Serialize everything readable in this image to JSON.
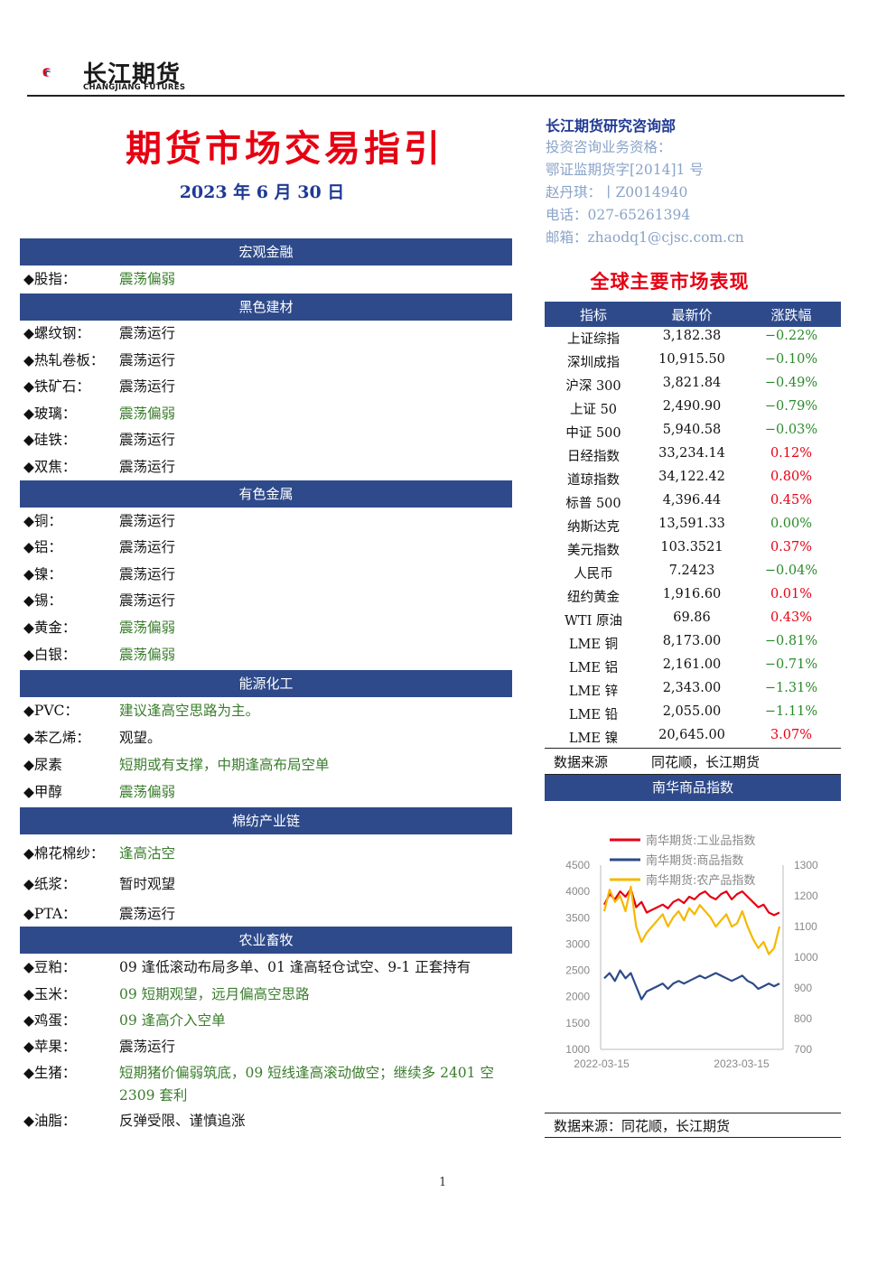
{
  "header": {
    "logo_cn": "长江期货",
    "logo_en": "CHANGJIANG FUTURES",
    "title": "期货市场交易指引",
    "date": "2023 年 6 月 30 日"
  },
  "contact": {
    "dept": "长江期货研究咨询部",
    "qualification": "投资咨询业务资格：",
    "license": "鄂证监期货字[2014]1 号",
    "analyst": "赵丹琪：丨Z0014940",
    "phone": "电话：027-65261394",
    "email": "邮箱：zhaodq1@cjsc.com.cn"
  },
  "sections": [
    {
      "title": "宏观金融",
      "items": [
        {
          "label": "◆股指：",
          "view": "震荡偏弱",
          "tone": "green"
        }
      ]
    },
    {
      "title": "黑色建材",
      "items": [
        {
          "label": "◆螺纹钢：",
          "view": "震荡运行",
          "tone": "dark"
        },
        {
          "label": "◆热轧卷板：",
          "view": "震荡运行",
          "tone": "dark"
        },
        {
          "label": "◆铁矿石：",
          "view": "震荡运行",
          "tone": "dark"
        },
        {
          "label": "◆玻璃：",
          "view": "震荡偏弱",
          "tone": "green"
        },
        {
          "label": "◆硅铁：",
          "view": "震荡运行",
          "tone": "dark"
        },
        {
          "label": "◆双焦：",
          "view": "震荡运行",
          "tone": "dark"
        }
      ]
    },
    {
      "title": "有色金属",
      "items": [
        {
          "label": "◆铜：",
          "view": "震荡运行",
          "tone": "dark"
        },
        {
          "label": "◆铝：",
          "view": "震荡运行",
          "tone": "dark"
        },
        {
          "label": "◆镍：",
          "view": "震荡运行",
          "tone": "dark"
        },
        {
          "label": "◆锡：",
          "view": "震荡运行",
          "tone": "dark"
        },
        {
          "label": "◆黄金：",
          "view": "震荡偏弱",
          "tone": "green"
        },
        {
          "label": "◆白银：",
          "view": "震荡偏弱",
          "tone": "green"
        }
      ]
    },
    {
      "title": "能源化工",
      "items": [
        {
          "label": "◆PVC：",
          "view": "建议逢高空思路为主。",
          "tone": "green"
        },
        {
          "label": "◆苯乙烯：",
          "view": "观望。",
          "tone": "dark"
        },
        {
          "label": "◆尿素",
          "view": "短期或有支撑，中期逢高布局空单",
          "tone": "green"
        },
        {
          "label": "◆甲醇",
          "view": "震荡偏弱",
          "tone": "green"
        }
      ]
    },
    {
      "title": "棉纺产业链",
      "items": [
        {
          "label": "◆棉花棉纱：",
          "view": "逢高沽空",
          "tone": "green"
        },
        {
          "label": "◆纸浆：",
          "view": "暂时观望",
          "tone": "dark"
        },
        {
          "label": "◆PTA：",
          "view": "震荡运行",
          "tone": "dark"
        }
      ]
    },
    {
      "title": "农业畜牧",
      "items": [
        {
          "label": "◆豆粕：",
          "view": "09 逢低滚动布局多单、01 逢高轻仓试空、9-1 正套持有",
          "tone": "dark"
        },
        {
          "label": "◆玉米：",
          "view": "09 短期观望，远月偏高空思路",
          "tone": "green"
        },
        {
          "label": "◆鸡蛋：",
          "view": "09 逢高介入空单",
          "tone": "green"
        },
        {
          "label": "◆苹果：",
          "view": "震荡运行",
          "tone": "dark"
        },
        {
          "label": "◆生猪：",
          "view": "短期猪价偏弱筑底，09 短线逢高滚动做空；继续多 2401 空",
          "view2": "2309 套利",
          "tone": "green"
        },
        {
          "label": "◆油脂：",
          "view": "反弹受限、谨慎追涨",
          "tone": "dark"
        }
      ]
    }
  ],
  "market": {
    "title": "全球主要市场表现",
    "headers": [
      "指标",
      "最新价",
      "涨跌幅"
    ],
    "rows": [
      [
        "上证综指",
        "3,182.38",
        "−0.22%"
      ],
      [
        "深圳成指",
        "10,915.50",
        "−0.10%"
      ],
      [
        "沪深 300",
        "3,821.84",
        "−0.49%"
      ],
      [
        "上证 50",
        "2,490.90",
        "−0.79%"
      ],
      [
        "中证 500",
        "5,940.58",
        "−0.03%"
      ],
      [
        "日经指数",
        "33,234.14",
        "0.12%"
      ],
      [
        "道琼指数",
        "34,122.42",
        "0.80%"
      ],
      [
        "标普 500",
        "4,396.44",
        "0.45%"
      ],
      [
        "纳斯达克",
        "13,591.33",
        "0.00%"
      ],
      [
        "美元指数",
        "103.3521",
        "0.37%"
      ],
      [
        "人民币",
        "7.2423",
        "−0.04%"
      ],
      [
        "纽约黄金",
        "1,916.60",
        "0.01%"
      ],
      [
        "WTI 原油",
        "69.86",
        "0.43%"
      ],
      [
        "LME 铜",
        "8,173.00",
        "−0.81%"
      ],
      [
        "LME 铝",
        "2,161.00",
        "−0.71%"
      ],
      [
        "LME 锌",
        "2,343.00",
        "−1.31%"
      ],
      [
        "LME 铅",
        "2,055.00",
        "−1.11%"
      ],
      [
        "LME 镍",
        "20,645.00",
        "3.07%"
      ]
    ],
    "row_tones": [
      "neg",
      "neg",
      "neg",
      "neg",
      "neg",
      "pos",
      "pos",
      "pos",
      "neg",
      "pos",
      "neg",
      "pos",
      "pos",
      "neg",
      "neg",
      "neg",
      "neg",
      "pos"
    ],
    "source_label": "数据来源",
    "source_value": "同花顺，长江期货"
  },
  "nanhua": {
    "title": "南华商品指数",
    "source": "数据来源：同花顺，长江期货"
  },
  "chart_data": {
    "type": "line",
    "title": "",
    "x_ticks": [
      "2022-03-15",
      "2023-03-15"
    ],
    "y_left_ticks": [
      1000,
      1500,
      2000,
      2500,
      3000,
      3500,
      4000,
      4500
    ],
    "y_right_ticks": [
      700,
      800,
      900,
      1000,
      1100,
      1200,
      1300
    ],
    "y_left_range": [
      1000,
      4500
    ],
    "y_right_range": [
      700,
      1300
    ],
    "legend_position": "top",
    "series": [
      {
        "name": "南华期货:工业品指数",
        "color": "#e60012",
        "axis": "left",
        "values": [
          3750,
          3950,
          3850,
          4000,
          3900,
          4050,
          3700,
          3800,
          3600,
          3650,
          3700,
          3750,
          3680,
          3800,
          3850,
          3780,
          3900,
          3850,
          3950,
          4000,
          3900,
          3850,
          3950,
          4000,
          3850,
          3950,
          4000,
          3900,
          3800,
          3700,
          3750,
          3600,
          3550,
          3600
        ]
      },
      {
        "name": "南华期货:商品指数",
        "color": "#2e4a8a",
        "axis": "left",
        "values": [
          2350,
          2450,
          2300,
          2500,
          2350,
          2450,
          2200,
          1950,
          2100,
          2150,
          2200,
          2250,
          2150,
          2250,
          2300,
          2250,
          2300,
          2350,
          2400,
          2350,
          2400,
          2450,
          2400,
          2350,
          2300,
          2350,
          2400,
          2300,
          2250,
          2150,
          2200,
          2250,
          2200,
          2250
        ]
      },
      {
        "name": "南华期货:农产品指数",
        "color": "#f5b800",
        "axis": "right",
        "values": [
          1150,
          1220,
          1180,
          1200,
          1150,
          1230,
          1100,
          1050,
          1080,
          1100,
          1120,
          1140,
          1100,
          1130,
          1150,
          1120,
          1160,
          1140,
          1170,
          1150,
          1130,
          1100,
          1120,
          1140,
          1100,
          1110,
          1150,
          1100,
          1060,
          1030,
          1050,
          1010,
          1030,
          1100
        ]
      }
    ]
  },
  "footer": {
    "page": "1"
  }
}
